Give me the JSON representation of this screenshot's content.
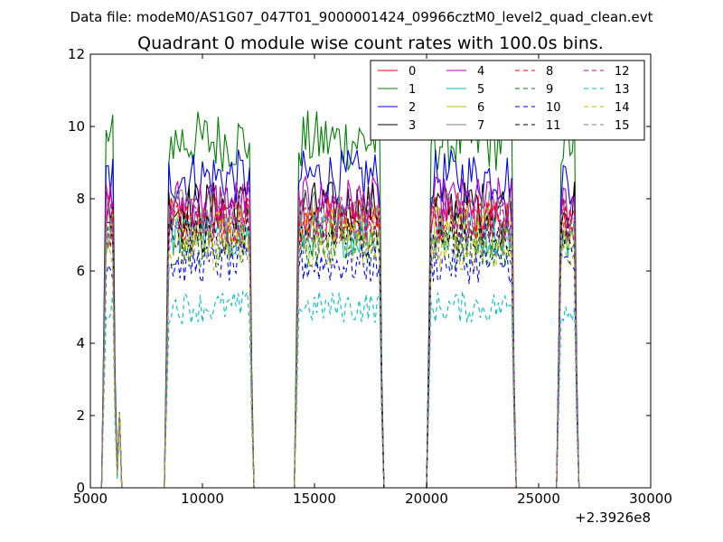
{
  "figure": {
    "suptitle": "Data file: modeM0/AS1G07_047T01_9000001424_09966cztM0_level2_quad_clean.evt",
    "title": "Quadrant 0 module wise count rates with 100.0s bins.",
    "offset_label": "+2.3926e8"
  },
  "chart_data": {
    "type": "line",
    "xlim": [
      5000,
      30000
    ],
    "ylim": [
      0,
      12
    ],
    "x_ticks": [
      5000,
      10000,
      15000,
      20000,
      25000,
      30000
    ],
    "y_ticks": [
      0,
      2,
      4,
      6,
      8,
      10,
      12
    ],
    "x_tick_labels": [
      "5000",
      "10000",
      "15000",
      "20000",
      "25000",
      "30000"
    ],
    "y_tick_labels": [
      "0",
      "2",
      "4",
      "6",
      "8",
      "10",
      "12"
    ],
    "x_offset": "+2.3926e8",
    "legend_position": "top-right",
    "legend_columns": 4,
    "segments": [
      {
        "start": 5600,
        "end": 6000
      },
      {
        "start": 8400,
        "end": 12100
      },
      {
        "start": 14200,
        "end": 17900
      },
      {
        "start": 20100,
        "end": 23800
      },
      {
        "start": 25900,
        "end": 26600
      }
    ],
    "series": [
      {
        "name": "0",
        "color": "#ff0000",
        "dash": "solid",
        "level": 7.5
      },
      {
        "name": "1",
        "color": "#008000",
        "dash": "solid",
        "level": 9.6
      },
      {
        "name": "2",
        "color": "#0000ff",
        "dash": "solid",
        "level": 8.6
      },
      {
        "name": "3",
        "color": "#000000",
        "dash": "solid",
        "level": 7.8
      },
      {
        "name": "4",
        "color": "#bf00bf",
        "dash": "solid",
        "level": 7.9
      },
      {
        "name": "5",
        "color": "#00bfbf",
        "dash": "solid",
        "level": 7.0
      },
      {
        "name": "6",
        "color": "#bfbf00",
        "dash": "solid",
        "level": 7.2
      },
      {
        "name": "7",
        "color": "#808080",
        "dash": "solid",
        "level": 7.6
      },
      {
        "name": "8",
        "color": "#ff0000",
        "dash": "dashed",
        "level": 7.3
      },
      {
        "name": "9",
        "color": "#008000",
        "dash": "dashed",
        "level": 6.7
      },
      {
        "name": "10",
        "color": "#0000ff",
        "dash": "dashed",
        "level": 6.2
      },
      {
        "name": "11",
        "color": "#000000",
        "dash": "dashed",
        "level": 7.0
      },
      {
        "name": "12",
        "color": "#bf00bf",
        "dash": "dashed",
        "level": 7.4
      },
      {
        "name": "13",
        "color": "#00bfbf",
        "dash": "dashed",
        "level": 5.0
      },
      {
        "name": "14",
        "color": "#bfbf00",
        "dash": "dashed",
        "level": 6.6
      },
      {
        "name": "15",
        "color": "#808080",
        "dash": "dashed",
        "level": 6.9
      }
    ]
  }
}
